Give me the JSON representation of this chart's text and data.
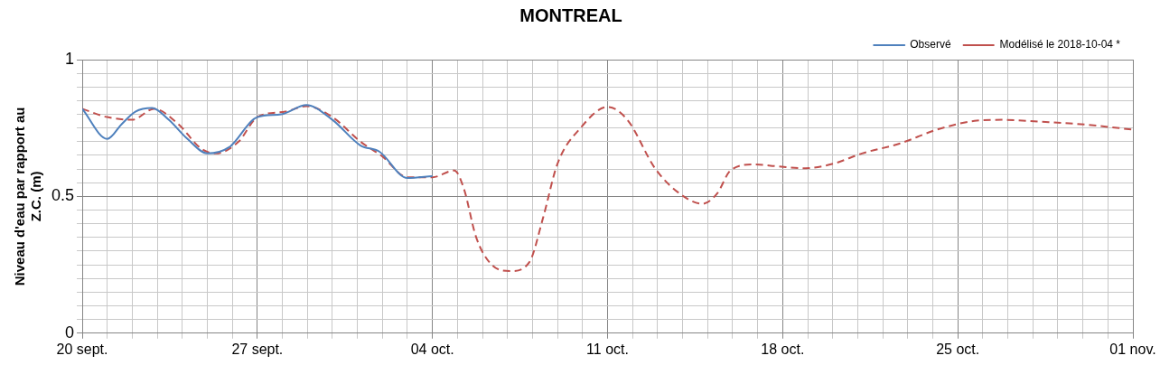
{
  "chart_data": {
    "type": "line",
    "title": "MONTREAL",
    "ylabel": "Niveau d'eau par rapport au Z.C. (m)",
    "legend": "top right",
    "marker": "none",
    "grid": true,
    "series": [
      {
        "name": "Observé",
        "color": "#4f81bd",
        "line_style": "solid",
        "x": [
          "2018-09-20",
          "2018-09-21",
          "2018-09-21T14:00",
          "2018-09-22T03:00",
          "2018-09-22T19:00",
          "2018-09-23T11:00",
          "2018-09-24T05:00",
          "2018-09-25",
          "2018-09-25T21:00",
          "2018-09-27",
          "2018-09-27T23:00",
          "2018-09-28T23:00",
          "2018-09-30",
          "2018-10-01T03:00",
          "2018-10-01T21:00",
          "2018-10-03",
          "2018-10-04"
        ],
        "values": [
          0.82,
          0.71,
          0.765,
          0.81,
          0.823,
          0.78,
          0.71,
          0.657,
          0.68,
          0.79,
          0.8,
          0.834,
          0.78,
          0.686,
          0.664,
          0.567,
          0.574
        ]
      },
      {
        "name": "Modélisé le 2018-10-04 *",
        "color": "#c0504d",
        "line_style": "dashed",
        "x": [
          "2018-09-20",
          "2018-09-21",
          "2018-09-22",
          "2018-09-22T21:00",
          "2018-09-23T20:00",
          "2018-09-24T18:00",
          "2018-09-25T08:00",
          "2018-09-26T06:00",
          "2018-09-27",
          "2018-09-28T03:00",
          "2018-09-28T23:00",
          "2018-09-30",
          "2018-10-01T03:00",
          "2018-10-02",
          "2018-10-03",
          "2018-10-04",
          "2018-10-04T21:00",
          "2018-10-05T06:00",
          "2018-10-05T18:00",
          "2018-10-06T09:00",
          "2018-10-07T03:00",
          "2018-10-07T21:00",
          "2018-10-08T10:00",
          "2018-10-09",
          "2018-10-09T22:00",
          "2018-10-11",
          "2018-10-11T19:00",
          "2018-10-12T22:00",
          "2018-10-14T01:00",
          "2018-10-14T19:00",
          "2018-10-15T09:00",
          "2018-10-15T22:00",
          "2018-10-16T20:00",
          "2018-10-17T19:00",
          "2018-10-18T22:00",
          "2018-10-20T01:00",
          "2018-10-21T04:00",
          "2018-10-22T16:00",
          "2018-10-24T04:00",
          "2018-10-25T16:00",
          "2018-10-26T19:00",
          "2018-10-28T07:00",
          "2018-10-30T04:00",
          "2018-11-01"
        ],
        "values": [
          0.82,
          0.79,
          0.78,
          0.82,
          0.765,
          0.675,
          0.657,
          0.7,
          0.79,
          0.81,
          0.83,
          0.79,
          0.7,
          0.646,
          0.57,
          0.57,
          0.595,
          0.53,
          0.35,
          0.25,
          0.227,
          0.26,
          0.42,
          0.62,
          0.75,
          0.827,
          0.78,
          0.6,
          0.5,
          0.473,
          0.51,
          0.595,
          0.617,
          0.61,
          0.603,
          0.62,
          0.657,
          0.693,
          0.744,
          0.776,
          0.78,
          0.773,
          0.762,
          0.744
        ]
      }
    ],
    "xlim": [
      "2018-09-20",
      "2018-11-01"
    ],
    "xticks": [
      {
        "value": "2018-09-20",
        "label": "20 sept."
      },
      {
        "value": "2018-09-21",
        "label": null
      },
      {
        "value": "2018-09-22",
        "label": null
      },
      {
        "value": "2018-09-23",
        "label": null
      },
      {
        "value": "2018-09-24",
        "label": null
      },
      {
        "value": "2018-09-25",
        "label": null
      },
      {
        "value": "2018-09-26",
        "label": null
      },
      {
        "value": "2018-09-27",
        "label": "27 sept."
      },
      {
        "value": "2018-09-28",
        "label": null
      },
      {
        "value": "2018-09-29",
        "label": null
      },
      {
        "value": "2018-09-30",
        "label": null
      },
      {
        "value": "2018-10-01",
        "label": null
      },
      {
        "value": "2018-10-02",
        "label": null
      },
      {
        "value": "2018-10-03",
        "label": null
      },
      {
        "value": "2018-10-04",
        "label": "04 oct."
      },
      {
        "value": "2018-10-05",
        "label": null
      },
      {
        "value": "2018-10-06",
        "label": null
      },
      {
        "value": "2018-10-07",
        "label": null
      },
      {
        "value": "2018-10-08",
        "label": null
      },
      {
        "value": "2018-10-09",
        "label": null
      },
      {
        "value": "2018-10-10",
        "label": null
      },
      {
        "value": "2018-10-11",
        "label": "11 oct."
      },
      {
        "value": "2018-10-12",
        "label": null
      },
      {
        "value": "2018-10-13",
        "label": null
      },
      {
        "value": "2018-10-14",
        "label": null
      },
      {
        "value": "2018-10-15",
        "label": null
      },
      {
        "value": "2018-10-16",
        "label": null
      },
      {
        "value": "2018-10-17",
        "label": null
      },
      {
        "value": "2018-10-18",
        "label": "18 oct."
      },
      {
        "value": "2018-10-19",
        "label": null
      },
      {
        "value": "2018-10-20",
        "label": null
      },
      {
        "value": "2018-10-21",
        "label": null
      },
      {
        "value": "2018-10-22",
        "label": null
      },
      {
        "value": "2018-10-23",
        "label": null
      },
      {
        "value": "2018-10-24",
        "label": null
      },
      {
        "value": "2018-10-25",
        "label": "25 oct."
      },
      {
        "value": "2018-10-26",
        "label": null
      },
      {
        "value": "2018-10-27",
        "label": null
      },
      {
        "value": "2018-10-28",
        "label": null
      },
      {
        "value": "2018-10-29",
        "label": null
      },
      {
        "value": "2018-10-30",
        "label": null
      },
      {
        "value": "2018-10-31",
        "label": null
      },
      {
        "value": "2018-11-01",
        "label": "01 nov."
      }
    ],
    "ylim": [
      0,
      1
    ],
    "yticks": [
      0,
      {
        "value": 0.05,
        "label": null
      },
      {
        "value": 0.1,
        "label": null
      },
      {
        "value": 0.15,
        "label": null
      },
      {
        "value": 0.2,
        "label": null
      },
      {
        "value": 0.25,
        "label": null
      },
      {
        "value": 0.3,
        "label": null
      },
      {
        "value": 0.35,
        "label": null
      },
      {
        "value": 0.4,
        "label": null
      },
      {
        "value": 0.45,
        "label": null
      },
      0.5,
      {
        "value": 0.55,
        "label": null
      },
      {
        "value": 0.6,
        "label": null
      },
      {
        "value": 0.65,
        "label": null
      },
      {
        "value": 0.7,
        "label": null
      },
      {
        "value": 0.75,
        "label": null
      },
      {
        "value": 0.8,
        "label": null
      },
      {
        "value": 0.85,
        "label": null
      },
      {
        "value": 0.9,
        "label": null
      },
      {
        "value": 0.95,
        "label": null
      },
      1
    ]
  }
}
